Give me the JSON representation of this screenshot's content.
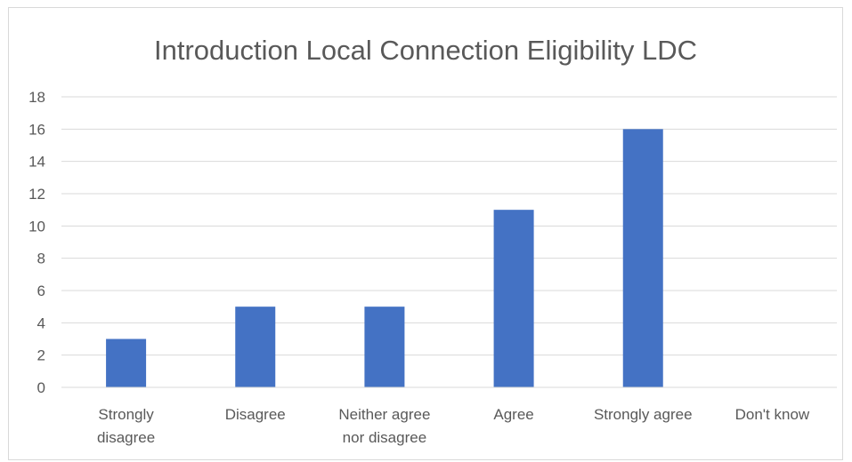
{
  "chart_data": {
    "type": "bar",
    "title": "Introduction Local Connection Eligibility LDC",
    "xlabel": "",
    "ylabel": "",
    "categories": [
      "Strongly disagree",
      "Disagree",
      "Neither agree nor disagree",
      "Agree",
      "Strongly agree",
      "Don't know"
    ],
    "category_label_lines": [
      [
        "Strongly",
        "disagree"
      ],
      [
        "Disagree"
      ],
      [
        "Neither agree",
        "nor disagree"
      ],
      [
        "Agree"
      ],
      [
        "Strongly agree"
      ],
      [
        "Don't know"
      ]
    ],
    "values": [
      3,
      5,
      5,
      11,
      16,
      0
    ],
    "ylim": [
      0,
      18
    ],
    "yticks": [
      0,
      2,
      4,
      6,
      8,
      10,
      12,
      14,
      16,
      18
    ],
    "grid": true,
    "legend": "none",
    "bar_color": "#4472c4"
  }
}
